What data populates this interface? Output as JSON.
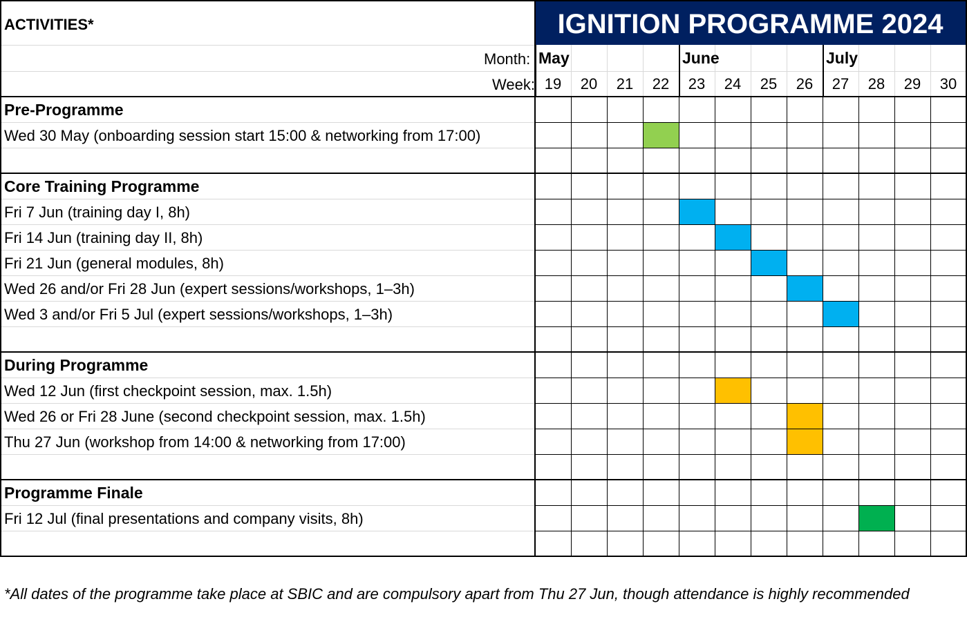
{
  "header": {
    "activities_label": "ACTIVITIES*",
    "title": "IGNITION PROGRAMME 2024",
    "title_bg": "#002060",
    "month_label": "Month:",
    "week_label": "Week:"
  },
  "months": [
    {
      "label": "May",
      "start_week_index": 0
    },
    {
      "label": "June",
      "start_week_index": 4
    },
    {
      "label": "July",
      "start_week_index": 8
    }
  ],
  "weeks": [
    "19",
    "20",
    "21",
    "22",
    "23",
    "24",
    "25",
    "26",
    "27",
    "28",
    "29",
    "30"
  ],
  "colors": {
    "pre": "#92d050",
    "core": "#00b0f0",
    "during": "#ffc000",
    "finale": "#00b050"
  },
  "sections": [
    {
      "title": "Pre-Programme",
      "color_key": "pre",
      "items": [
        {
          "label": "Wed 30 May (onboarding session start 15:00 & networking from 17:00)",
          "weeks": [
            "22"
          ]
        }
      ]
    },
    {
      "title": "Core Training Programme",
      "color_key": "core",
      "items": [
        {
          "label": "Fri 7 Jun (training day I, 8h)",
          "weeks": [
            "23"
          ]
        },
        {
          "label": "Fri 14 Jun (training day II, 8h)",
          "weeks": [
            "24"
          ]
        },
        {
          "label": "Fri 21 Jun (general modules, 8h)",
          "weeks": [
            "25"
          ]
        },
        {
          "label": "Wed 26 and/or Fri 28 Jun (expert sessions/workshops, 1–3h)",
          "weeks": [
            "26"
          ]
        },
        {
          "label": "Wed 3 and/or Fri 5 Jul (expert sessions/workshops, 1–3h)",
          "weeks": [
            "27"
          ]
        }
      ]
    },
    {
      "title": "During Programme",
      "color_key": "during",
      "items": [
        {
          "label": "Wed 12 Jun (first checkpoint session, max. 1.5h)",
          "weeks": [
            "24"
          ]
        },
        {
          "label": "Wed 26 or Fri 28 June (second checkpoint session, max. 1.5h)",
          "weeks": [
            "26"
          ]
        },
        {
          "label": "Thu 27 Jun (workshop from 14:00 & networking from 17:00)",
          "weeks": [
            "26"
          ]
        }
      ]
    },
    {
      "title": "Programme Finale",
      "color_key": "finale",
      "items": [
        {
          "label": "Fri 12 Jul (final presentations and company visits, 8h)",
          "weeks": [
            "28"
          ]
        }
      ]
    }
  ],
  "footnote": "*All dates of the programme take place at SBIC and are compulsory apart from Thu 27 Jun, though attendance is highly recommended"
}
